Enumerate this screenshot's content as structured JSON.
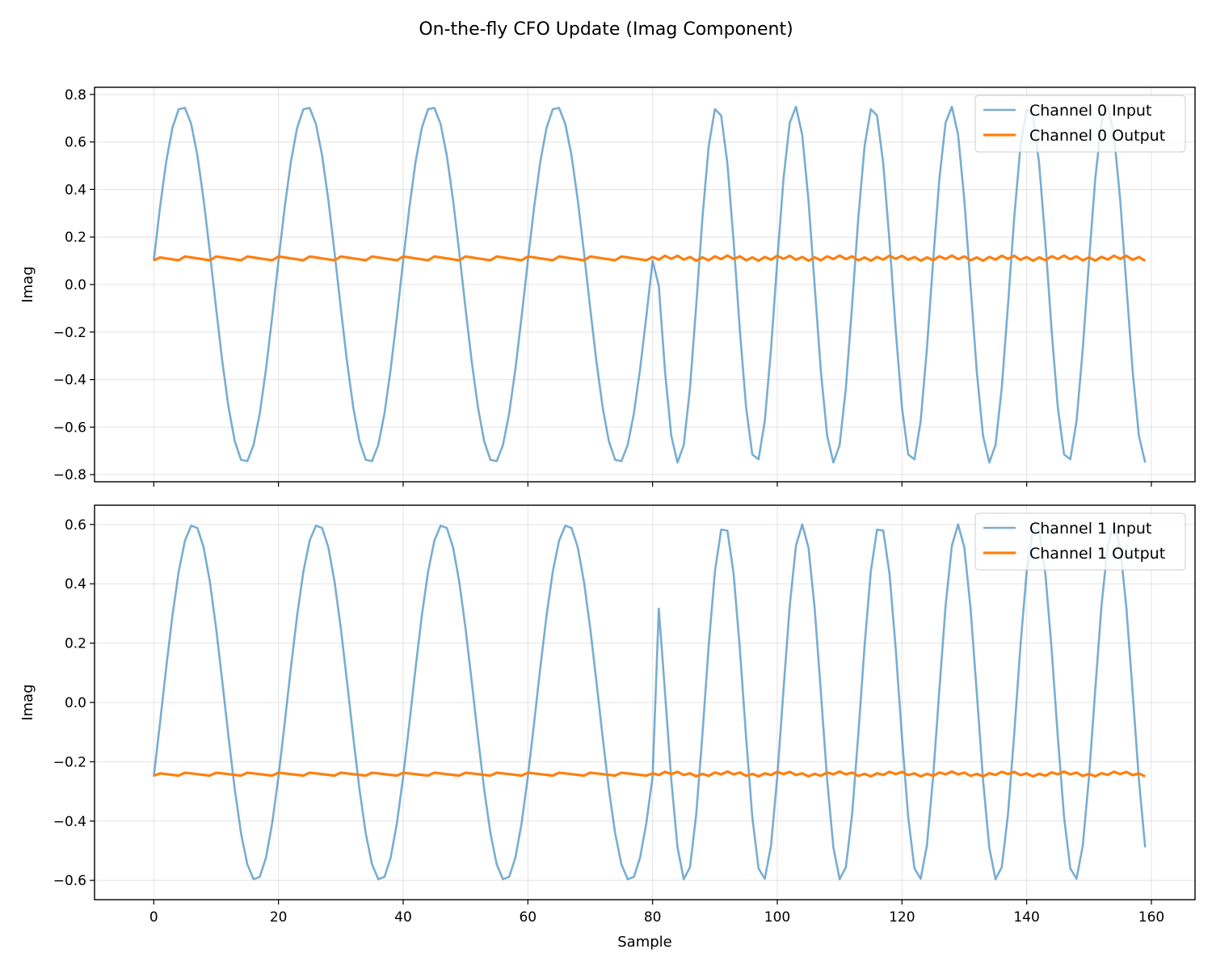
{
  "figure": {
    "title": "On-the-fly CFO Update (Imag Component)"
  },
  "chart_data": [
    {
      "type": "line",
      "title": "",
      "xlabel": "",
      "ylabel": "Imag",
      "xlim": [
        -9.5,
        167
      ],
      "ylim": [
        -0.83,
        0.83
      ],
      "xticks": [
        0,
        20,
        40,
        60,
        80,
        100,
        120,
        140,
        160
      ],
      "xticks_labeled": false,
      "yticks": [
        -0.8,
        -0.6,
        -0.4,
        -0.2,
        0.0,
        0.2,
        0.4,
        0.6,
        0.8
      ],
      "ytick_labels": [
        "−0.8",
        "−0.6",
        "−0.4",
        "−0.2",
        "0.0",
        "0.2",
        "0.4",
        "0.6",
        "0.8"
      ],
      "grid": true,
      "legend_position": "top-right",
      "series": [
        {
          "name": "Channel 0 Input",
          "color": "#1f77b4",
          "opacity": 0.6,
          "function": "0.75*sin(2*pi*n/20 + 0.134) for n<80, 0.1 at n=80, 0.75*sin(2*pi*n/12.5 + 0.134) for n>80",
          "n_points": 160
        },
        {
          "name": "Channel 0 Output",
          "color": "#ff7f0e",
          "opacity": 1.0,
          "function": "≈0.1 with small sawtooth ripple (±0.02)",
          "n_points": 160
        }
      ]
    },
    {
      "type": "line",
      "title": "",
      "xlabel": "Sample",
      "ylabel": "Imag",
      "xlim": [
        -9.5,
        167
      ],
      "ylim": [
        -0.665,
        0.665
      ],
      "xticks": [
        0,
        20,
        40,
        60,
        80,
        100,
        120,
        140,
        160
      ],
      "xtick_labels": [
        "0",
        "20",
        "40",
        "60",
        "80",
        "100",
        "120",
        "140",
        "160"
      ],
      "yticks": [
        -0.6,
        -0.4,
        -0.2,
        0.0,
        0.2,
        0.4,
        0.6
      ],
      "ytick_labels": [
        "−0.6",
        "−0.4",
        "−0.2",
        "0.0",
        "0.2",
        "0.4",
        "0.6"
      ],
      "grid": true,
      "legend_position": "top-right",
      "series": [
        {
          "name": "Channel 1 Input",
          "color": "#1f77b4",
          "opacity": 0.6,
          "function": "0.6*sin(2*pi*n/20 - 0.43) for n<80, -0.25 at n=80, 0.6*sin(2*pi*n/12.5 - 0.43) for n>80",
          "n_points": 160
        },
        {
          "name": "Channel 1 Output",
          "color": "#ff7f0e",
          "opacity": 1.0,
          "function": "≈-0.245 with small sawtooth ripple (±0.01)",
          "n_points": 160
        }
      ]
    }
  ]
}
